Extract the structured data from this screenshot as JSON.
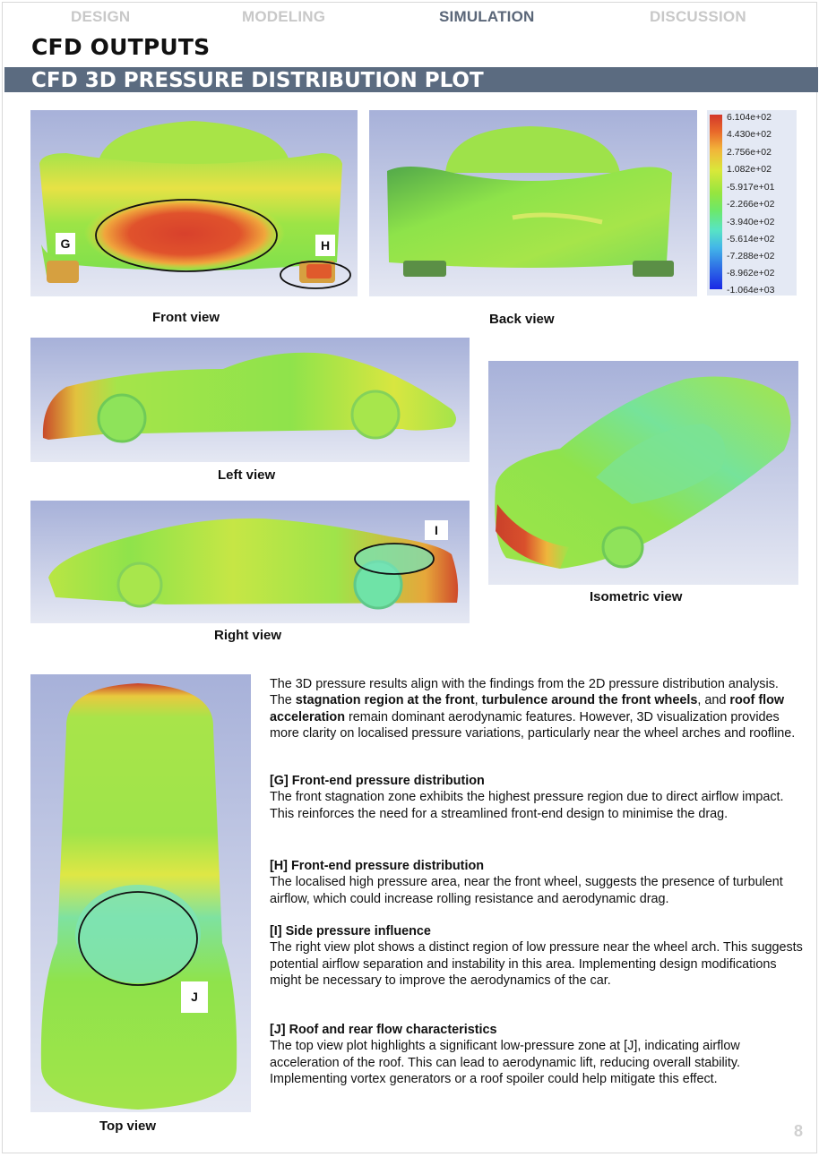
{
  "nav": {
    "items": [
      "DESIGN",
      "MODELING",
      "SIMULATION",
      "DISCUSSION"
    ],
    "active": "SIMULATION"
  },
  "section_title": "CFD OUTPUTS",
  "banner_title": "CFD 3D PRESSURE DISTRIBUTION PLOT",
  "views": {
    "front": "Front view",
    "back": "Back view",
    "left": "Left view",
    "right": "Right view",
    "isometric": "Isometric view",
    "top": "Top view"
  },
  "markers": {
    "g": "G",
    "h": "H",
    "i": "I",
    "j": "J"
  },
  "legend": {
    "values": [
      "6.104e+02",
      "4.430e+02",
      "2.756e+02",
      "1.082e+02",
      "-5.917e+01",
      "-2.266e+02",
      "-3.940e+02",
      "-5.614e+02",
      "-7.288e+02",
      "-8.962e+02",
      "-1.064e+03"
    ],
    "colors": {
      "high": "#d3372a",
      "mid": "#8de84a",
      "low": "#1a28e5"
    }
  },
  "intro": {
    "t1": "The 3D pressure results align with the findings from the 2D pressure distribution analysis. The ",
    "b1": "stagnation region at the front",
    "t2": ", ",
    "b2": "turbulence around the front wheels",
    "t3": ", and ",
    "b3": "roof flow acceleration",
    "t4": " remain dominant aerodynamic features. However, 3D visualization provides more clarity on localised pressure variations, particularly near the wheel arches and roofline."
  },
  "findings": [
    {
      "heading": "[G] Front-end pressure distribution",
      "text": "The front stagnation zone exhibits the highest pressure region due to direct airflow impact. This reinforces the need for a streamlined front-end design to minimise the drag."
    },
    {
      "heading": "[H] Front-end pressure distribution",
      "text": "The localised high pressure area, near the front wheel, suggests the presence of turbulent airflow, which could increase rolling resistance and aerodynamic drag."
    },
    {
      "heading": "[I] Side pressure influence",
      "text": "The right view plot shows a distinct region of low pressure near the wheel arch. This suggests potential airflow separation and instability in this area. Implementing design modifications might be necessary to improve the aerodynamics of the car."
    },
    {
      "heading": "[J] Roof and rear flow characteristics",
      "text": "The top view plot highlights a significant low-pressure zone at [J], indicating airflow acceleration of the roof. This can lead to aerodynamic lift, reducing overall stability. Implementing vortex generators or a roof spoiler could help mitigate this effect."
    }
  ],
  "page_number": "8"
}
